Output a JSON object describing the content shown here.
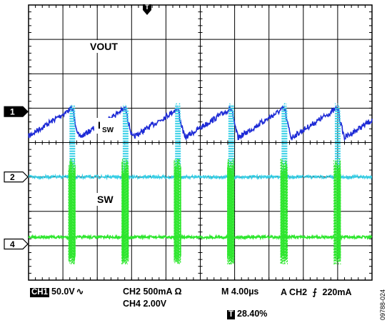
{
  "chart_data": {
    "type": "line",
    "title": "",
    "xlabel": "",
    "ylabel": "",
    "grid": true,
    "grid_divisions": {
      "x": 10,
      "y": 8
    },
    "x_unit": "µs",
    "time_per_div_us": 4.0,
    "xlim_us": [
      0,
      40
    ],
    "switching_events_us": [
      5.0,
      11.2,
      17.3,
      23.5,
      29.7,
      35.9
    ],
    "series": [
      {
        "name": "VOUT",
        "channel": "1",
        "color": "#1e2bd6",
        "ripple_peak_div": 3.9,
        "ripple_valley_div": 3.05,
        "baseline_div": 3.4
      },
      {
        "name": "ISW",
        "channel": "2",
        "color": "#36cfe6",
        "baseline_div": 5.0,
        "pulse_peak_div": 2.85
      },
      {
        "name": "SW",
        "channel": "4",
        "color": "#2ee62e",
        "baseline_div": 6.75,
        "pulse_peak_div": 4.45,
        "pulse_trough_div": 7.55
      }
    ],
    "annotations": [
      {
        "text_main": "VOUT",
        "text_sub": ""
      },
      {
        "text_main": "I",
        "text_sub": "SW"
      },
      {
        "text_main": "SW",
        "text_sub": ""
      }
    ],
    "trigger_marker": "T",
    "channel_markers": [
      "1",
      "2",
      "4"
    ]
  },
  "status": {
    "ch1_badge": "CH1",
    "ch1_scale": "50.0V",
    "ch1_coupling": "∿",
    "ch2_scale": "CH2 500mA Ω",
    "ch4_scale": "CH4 2.00V",
    "timebase": "M 4.00µs",
    "trigger": "A CH2",
    "trigger_slope": "⨍",
    "trigger_level": "220mA",
    "trigger_pos_badge": "T",
    "trigger_pos": "28.40%"
  },
  "figure_number": "09788-024",
  "colors": {
    "grid": "#000000",
    "background": "#ffffff"
  }
}
